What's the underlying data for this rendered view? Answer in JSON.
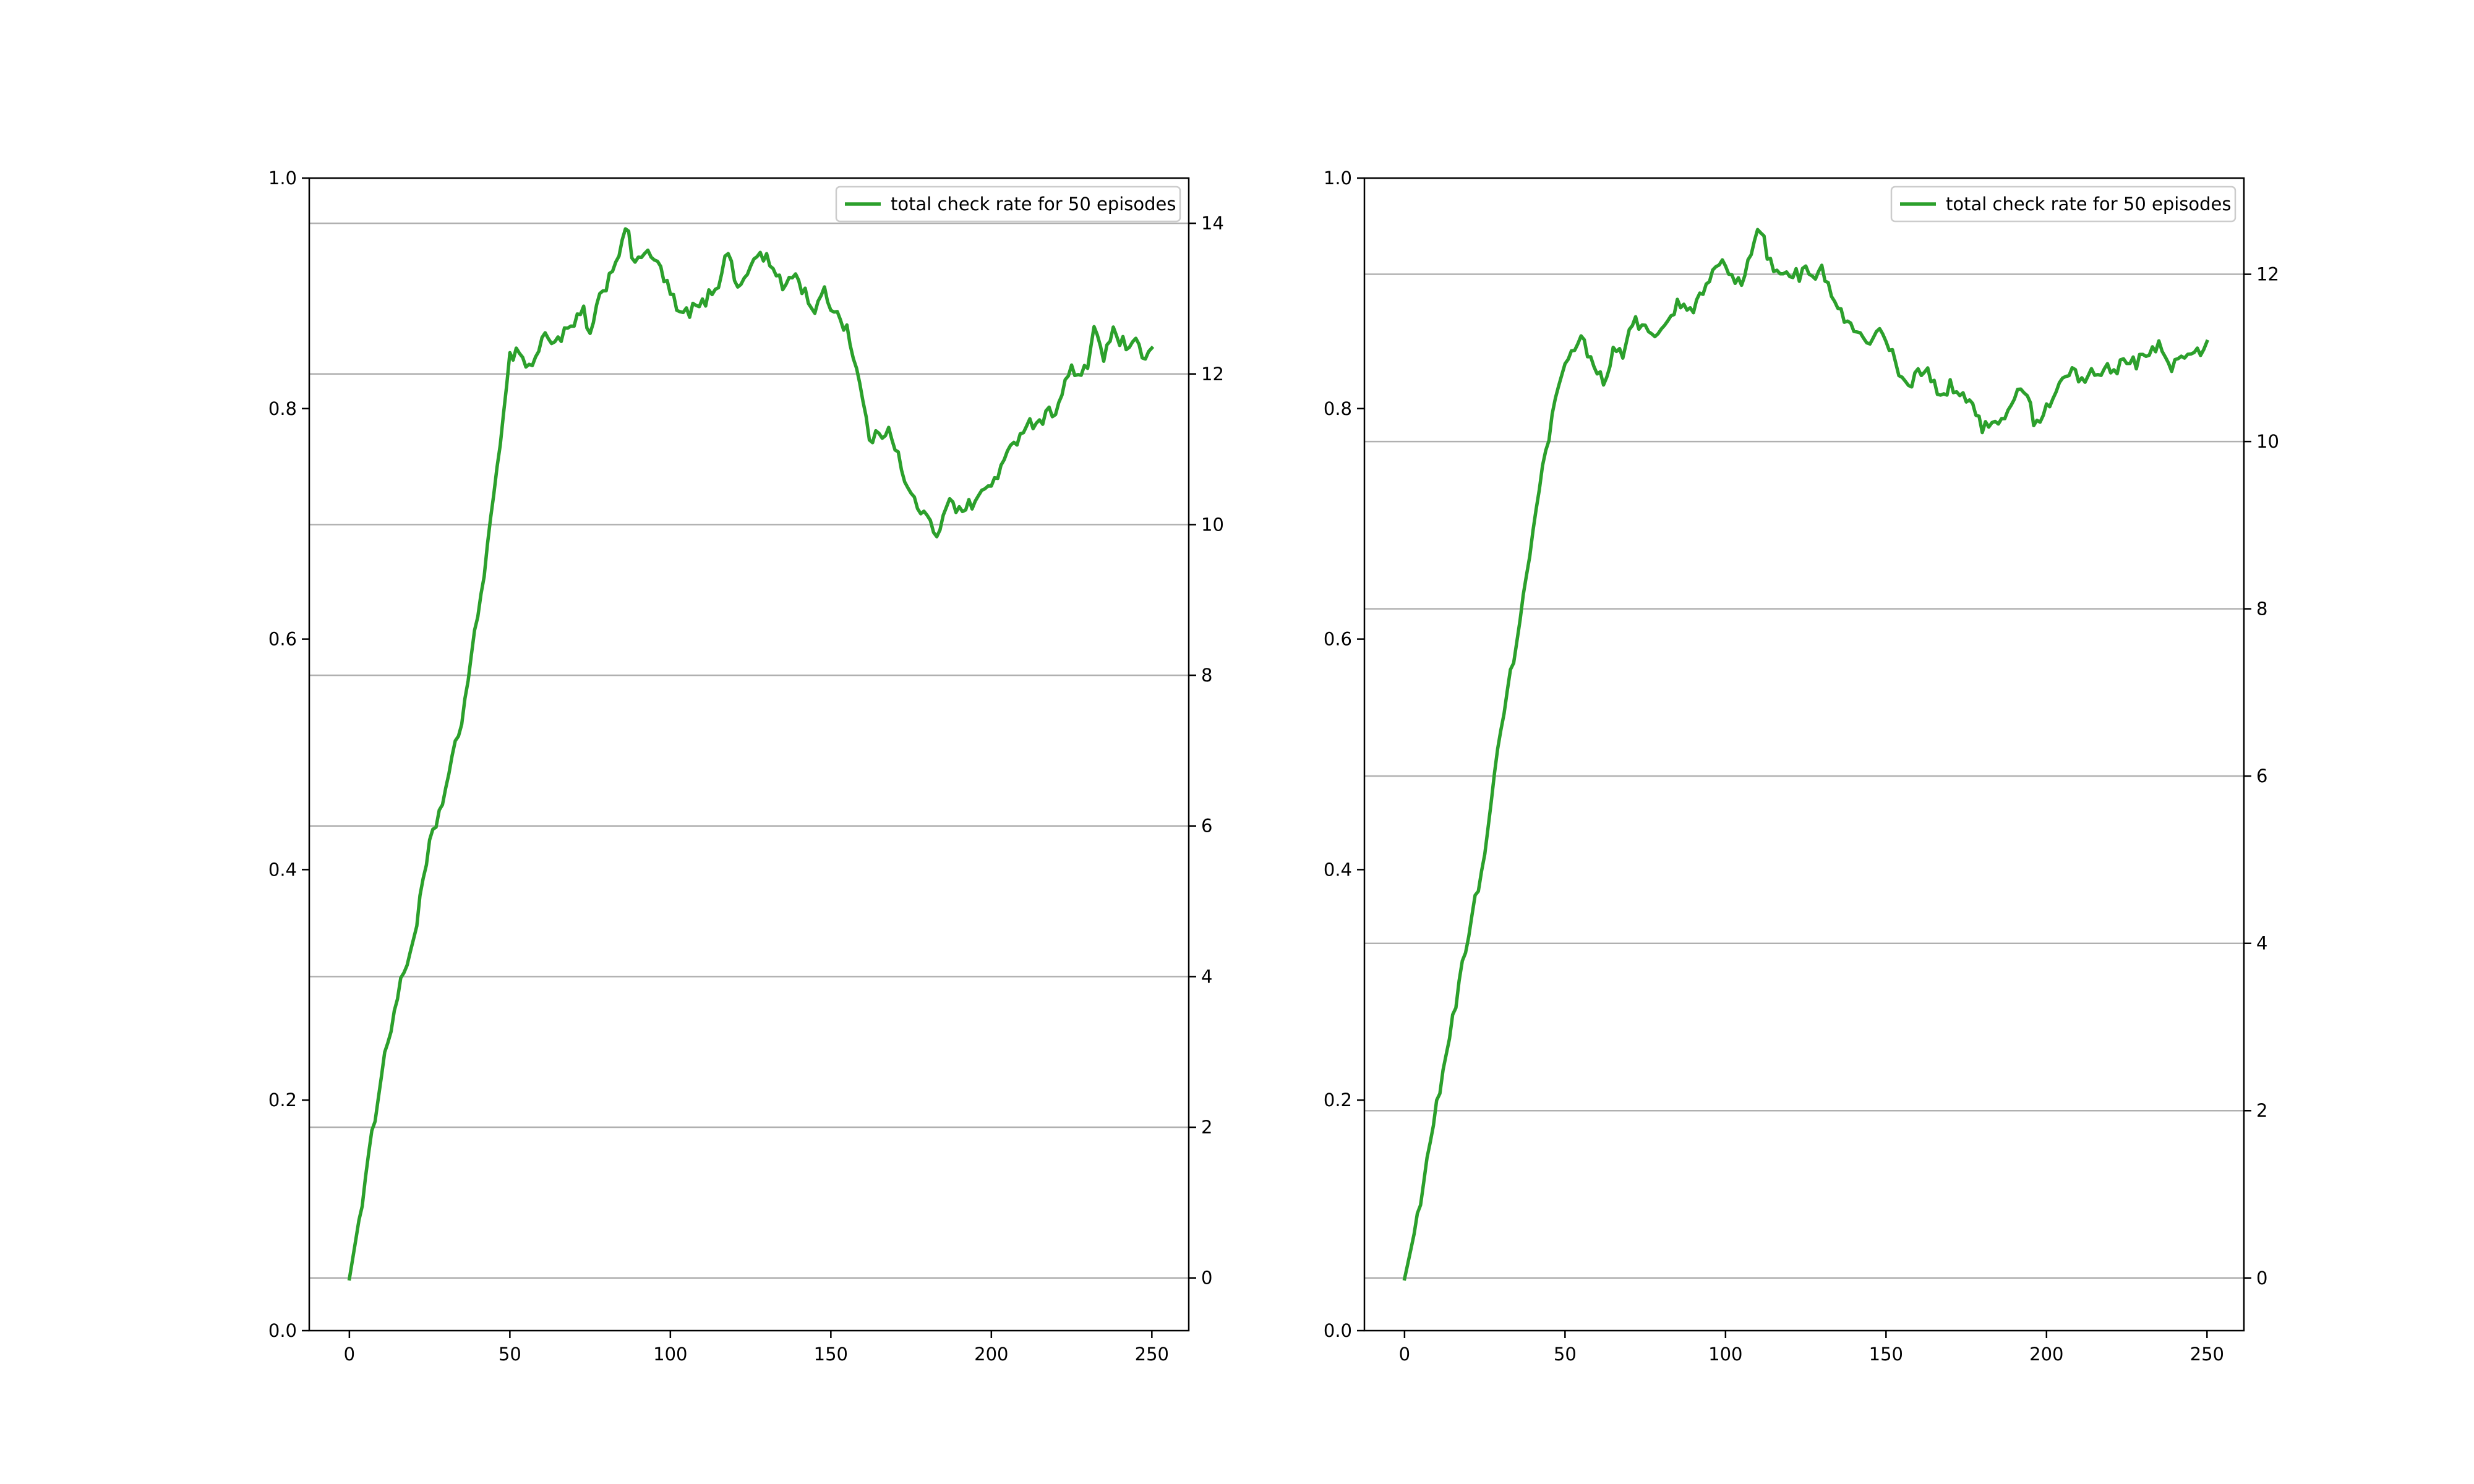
{
  "chart_data": [
    {
      "type": "line",
      "xlim": [
        -12.5,
        261.5
      ],
      "ylim": [
        0.0,
        1.0
      ],
      "y2lim": [
        -0.7,
        14.6
      ],
      "x_ticks": [
        0,
        50,
        100,
        150,
        200,
        250
      ],
      "y_ticks": [
        0.0,
        0.2,
        0.4,
        0.6,
        0.8,
        1.0
      ],
      "y_tick_labels": [
        "0.0",
        "0.2",
        "0.4",
        "0.6",
        "0.8",
        "1.0"
      ],
      "y2_ticks": [
        0,
        2,
        4,
        6,
        8,
        10,
        12,
        14
      ],
      "grid_axis": "right",
      "legend": {
        "label": "total check rate for 50 episodes",
        "placement": "upper right"
      },
      "series_color": "#2ca02c",
      "series": [
        {
          "keypoints": [
            [
              0,
              0.045
            ],
            [
              5,
              0.13
            ],
            [
              10,
              0.225
            ],
            [
              15,
              0.29
            ],
            [
              20,
              0.34
            ],
            [
              25,
              0.42
            ],
            [
              30,
              0.47
            ],
            [
              35,
              0.53
            ],
            [
              40,
              0.62
            ],
            [
              42,
              0.66
            ],
            [
              45,
              0.72
            ],
            [
              48,
              0.8
            ],
            [
              50,
              0.845
            ],
            [
              53,
              0.852
            ],
            [
              55,
              0.836
            ],
            [
              58,
              0.842
            ],
            [
              60,
              0.862
            ],
            [
              65,
              0.86
            ],
            [
              70,
              0.872
            ],
            [
              73,
              0.885
            ],
            [
              75,
              0.862
            ],
            [
              78,
              0.895
            ],
            [
              80,
              0.908
            ],
            [
              85,
              0.944
            ],
            [
              87,
              0.956
            ],
            [
              88,
              0.925
            ],
            [
              90,
              0.935
            ],
            [
              95,
              0.93
            ],
            [
              97,
              0.92
            ],
            [
              100,
              0.9
            ],
            [
              103,
              0.88
            ],
            [
              106,
              0.885
            ],
            [
              110,
              0.89
            ],
            [
              115,
              0.91
            ],
            [
              118,
              0.938
            ],
            [
              120,
              0.912
            ],
            [
              123,
              0.908
            ],
            [
              125,
              0.925
            ],
            [
              128,
              0.935
            ],
            [
              130,
              0.93
            ],
            [
              135,
              0.905
            ],
            [
              138,
              0.918
            ],
            [
              140,
              0.91
            ],
            [
              145,
              0.885
            ],
            [
              148,
              0.9
            ],
            [
              150,
              0.89
            ],
            [
              155,
              0.87
            ],
            [
              158,
              0.835
            ],
            [
              162,
              0.775
            ],
            [
              165,
              0.775
            ],
            [
              168,
              0.785
            ],
            [
              170,
              0.77
            ],
            [
              173,
              0.735
            ],
            [
              176,
              0.72
            ],
            [
              180,
              0.705
            ],
            [
              183,
              0.685
            ],
            [
              185,
              0.71
            ],
            [
              187,
              0.725
            ],
            [
              190,
              0.71
            ],
            [
              195,
              0.72
            ],
            [
              200,
              0.735
            ],
            [
              205,
              0.758
            ],
            [
              210,
              0.785
            ],
            [
              215,
              0.79
            ],
            [
              220,
              0.8
            ],
            [
              225,
              0.835
            ],
            [
              228,
              0.825
            ],
            [
              230,
              0.838
            ],
            [
              232,
              0.872
            ],
            [
              235,
              0.845
            ],
            [
              238,
              0.865
            ],
            [
              240,
              0.86
            ],
            [
              243,
              0.85
            ],
            [
              245,
              0.855
            ],
            [
              248,
              0.845
            ],
            [
              250,
              0.85
            ]
          ]
        }
      ]
    },
    {
      "type": "line",
      "xlim": [
        -12.5,
        261.5
      ],
      "ylim": [
        0.0,
        1.0
      ],
      "y2lim": [
        -0.63,
        13.15
      ],
      "x_ticks": [
        0,
        50,
        100,
        150,
        200,
        250
      ],
      "y_ticks": [
        0.0,
        0.2,
        0.4,
        0.6,
        0.8,
        1.0
      ],
      "y_tick_labels": [
        "0.0",
        "0.2",
        "0.4",
        "0.6",
        "0.8",
        "1.0"
      ],
      "y2_ticks": [
        0,
        2,
        4,
        6,
        8,
        10,
        12
      ],
      "grid_axis": "right",
      "legend": {
        "label": "total check rate for 50 episodes",
        "placement": "upper right"
      },
      "series_color": "#2ca02c",
      "series": [
        {
          "keypoints": [
            [
              0,
              0.045
            ],
            [
              5,
              0.11
            ],
            [
              8,
              0.165
            ],
            [
              12,
              0.225
            ],
            [
              15,
              0.27
            ],
            [
              20,
              0.345
            ],
            [
              25,
              0.415
            ],
            [
              30,
              0.52
            ],
            [
              35,
              0.6
            ],
            [
              40,
              0.69
            ],
            [
              43,
              0.745
            ],
            [
              47,
              0.805
            ],
            [
              50,
              0.835
            ],
            [
              53,
              0.855
            ],
            [
              55,
              0.862
            ],
            [
              57,
              0.848
            ],
            [
              60,
              0.835
            ],
            [
              62,
              0.825
            ],
            [
              65,
              0.848
            ],
            [
              68,
              0.848
            ],
            [
              70,
              0.868
            ],
            [
              72,
              0.878
            ],
            [
              75,
              0.868
            ],
            [
              78,
              0.86
            ],
            [
              80,
              0.868
            ],
            [
              83,
              0.878
            ],
            [
              85,
              0.89
            ],
            [
              88,
              0.885
            ],
            [
              90,
              0.888
            ],
            [
              95,
              0.91
            ],
            [
              98,
              0.925
            ],
            [
              100,
              0.925
            ],
            [
              103,
              0.912
            ],
            [
              105,
              0.91
            ],
            [
              108,
              0.935
            ],
            [
              110,
              0.95
            ],
            [
              112,
              0.945
            ],
            [
              115,
              0.915
            ],
            [
              118,
              0.918
            ],
            [
              120,
              0.92
            ],
            [
              123,
              0.915
            ],
            [
              125,
              0.92
            ],
            [
              128,
              0.918
            ],
            [
              130,
              0.922
            ],
            [
              133,
              0.895
            ],
            [
              135,
              0.885
            ],
            [
              138,
              0.875
            ],
            [
              140,
              0.865
            ],
            [
              143,
              0.86
            ],
            [
              145,
              0.855
            ],
            [
              148,
              0.865
            ],
            [
              150,
              0.862
            ],
            [
              152,
              0.848
            ],
            [
              155,
              0.825
            ],
            [
              158,
              0.818
            ],
            [
              160,
              0.835
            ],
            [
              163,
              0.83
            ],
            [
              165,
              0.82
            ],
            [
              168,
              0.808
            ],
            [
              170,
              0.82
            ],
            [
              173,
              0.815
            ],
            [
              175,
              0.81
            ],
            [
              178,
              0.795
            ],
            [
              180,
              0.785
            ],
            [
              183,
              0.79
            ],
            [
              186,
              0.79
            ],
            [
              190,
              0.812
            ],
            [
              193,
              0.818
            ],
            [
              196,
              0.79
            ],
            [
              198,
              0.785
            ],
            [
              201,
              0.805
            ],
            [
              205,
              0.825
            ],
            [
              208,
              0.835
            ],
            [
              210,
              0.825
            ],
            [
              215,
              0.832
            ],
            [
              218,
              0.835
            ],
            [
              220,
              0.832
            ],
            [
              225,
              0.84
            ],
            [
              228,
              0.84
            ],
            [
              230,
              0.845
            ],
            [
              233,
              0.852
            ],
            [
              235,
              0.855
            ],
            [
              238,
              0.835
            ],
            [
              240,
              0.84
            ],
            [
              243,
              0.845
            ],
            [
              245,
              0.85
            ],
            [
              248,
              0.852
            ],
            [
              250,
              0.858
            ]
          ]
        }
      ]
    }
  ]
}
